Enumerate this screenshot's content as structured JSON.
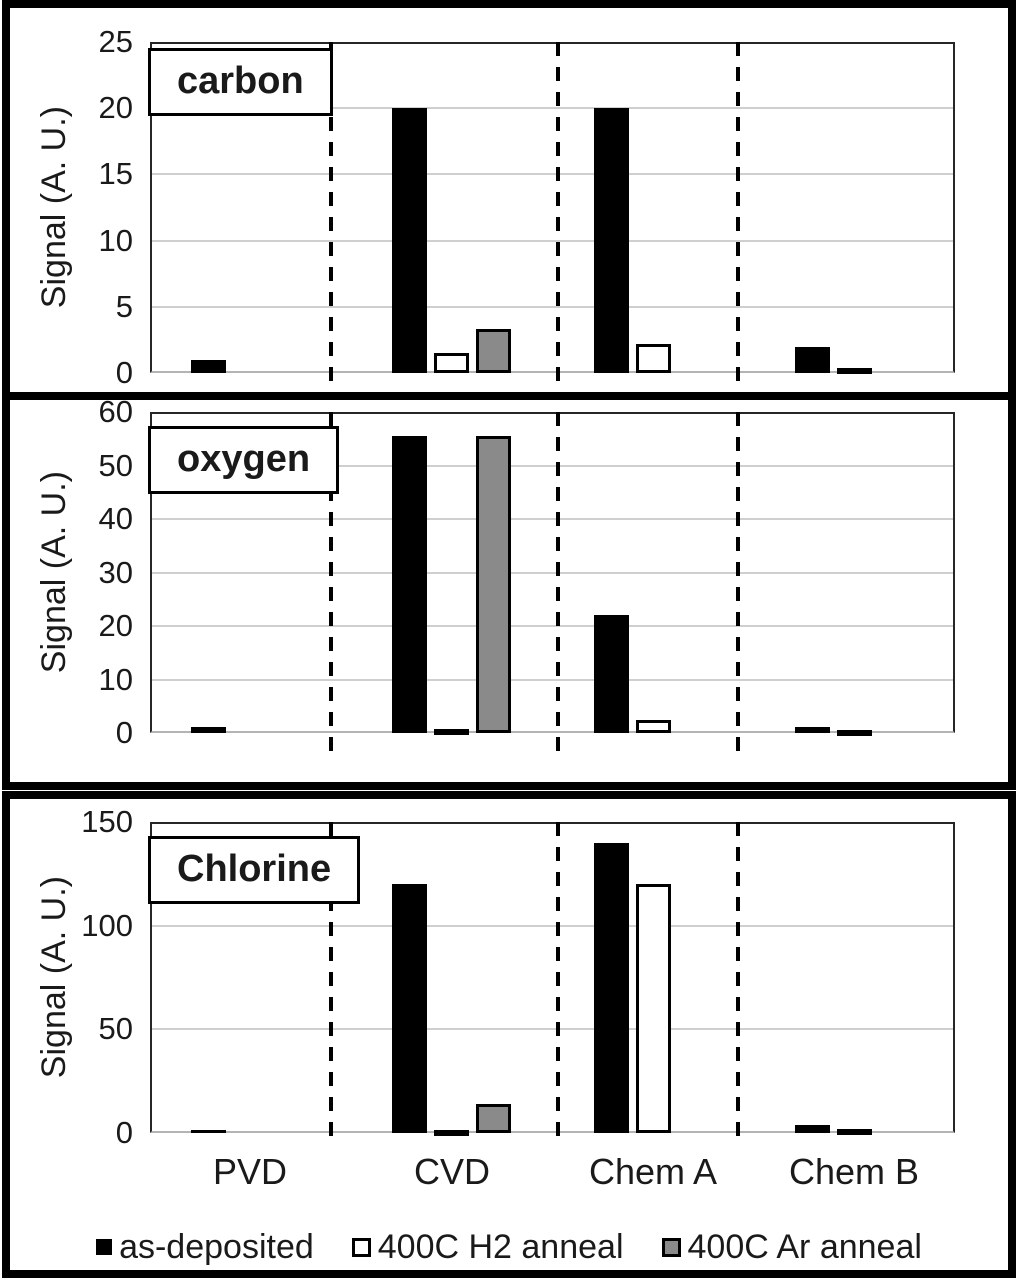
{
  "x_axis": {
    "categories": [
      "PVD",
      "CVD",
      "Chem A",
      "Chem B"
    ]
  },
  "legend": {
    "items": [
      {
        "label": "as-deposited",
        "swatch": "black"
      },
      {
        "label": "400C H2 anneal",
        "swatch": "white"
      },
      {
        "label": "400C Ar anneal",
        "swatch": "gray"
      }
    ]
  },
  "colors": {
    "bar_black": "#000000",
    "bar_white": "#ffffff",
    "bar_gray": "#8a8a8a",
    "gridline": "#cfcfcf",
    "axis_frame": "#262626",
    "baseline": "#b4b4b4"
  },
  "chart_data": [
    {
      "type": "bar",
      "panel_label": "carbon",
      "ylabel": "Signal (A. U.)",
      "ylim": [
        0,
        25
      ],
      "yticks": [
        0,
        5,
        10,
        15,
        20,
        25
      ],
      "grid": true,
      "group_separators": "dashed vertical lines between categories",
      "legend_position": "shared bottom",
      "categories": [
        "PVD",
        "CVD",
        "Chem A",
        "Chem B"
      ],
      "series": [
        {
          "name": "as-deposited",
          "color": "black",
          "values": [
            1,
            20,
            20,
            2
          ]
        },
        {
          "name": "400C H2 anneal",
          "color": "white",
          "values": [
            0,
            1.5,
            2.2,
            0.4
          ]
        },
        {
          "name": "400C Ar anneal",
          "color": "gray",
          "values": [
            0,
            3.3,
            0,
            0
          ]
        }
      ]
    },
    {
      "type": "bar",
      "panel_label": "oxygen",
      "ylabel": "Signal (A. U.)",
      "ylim": [
        0,
        60
      ],
      "yticks": [
        0,
        10,
        20,
        30,
        40,
        50,
        60
      ],
      "grid": true,
      "group_separators": "dashed vertical lines between categories",
      "legend_position": "shared bottom",
      "categories": [
        "PVD",
        "CVD",
        "Chem A",
        "Chem B"
      ],
      "series": [
        {
          "name": "as-deposited",
          "color": "black",
          "values": [
            1.2,
            55.5,
            22,
            1.2
          ]
        },
        {
          "name": "400C H2 anneal",
          "color": "white",
          "values": [
            0,
            0.8,
            2.5,
            0.6
          ]
        },
        {
          "name": "400C Ar anneal",
          "color": "gray",
          "values": [
            0,
            55.5,
            0,
            0
          ]
        }
      ]
    },
    {
      "type": "bar",
      "panel_label": "Chlorine",
      "ylabel": "Signal (A. U.)",
      "ylim": [
        0,
        150
      ],
      "yticks": [
        0,
        50,
        100,
        150
      ],
      "grid": true,
      "group_separators": "dashed vertical lines between categories",
      "legend_position": "shared bottom",
      "categories": [
        "PVD",
        "CVD",
        "Chem A",
        "Chem B"
      ],
      "series": [
        {
          "name": "as-deposited",
          "color": "black",
          "values": [
            1.5,
            120,
            140,
            4
          ]
        },
        {
          "name": "400C H2 anneal",
          "color": "white",
          "values": [
            0,
            1,
            120,
            2
          ]
        },
        {
          "name": "400C Ar anneal",
          "color": "gray",
          "values": [
            0,
            14,
            0,
            0
          ]
        }
      ]
    }
  ]
}
